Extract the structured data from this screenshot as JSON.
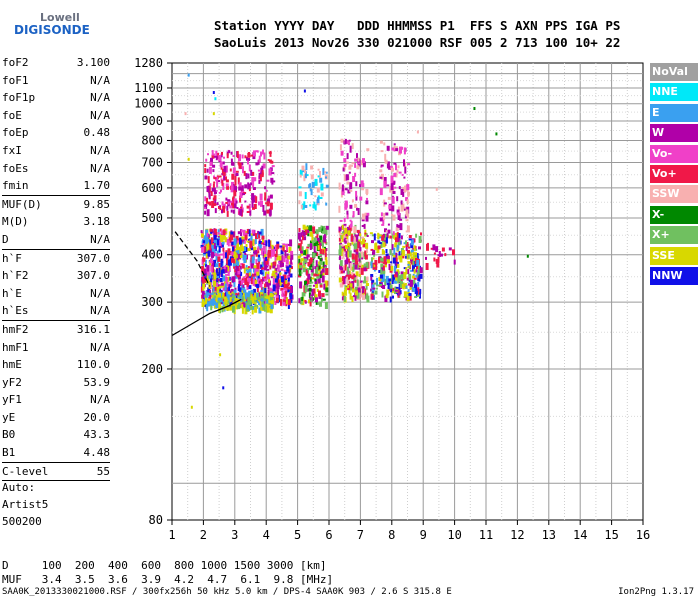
{
  "logo": {
    "line1": "Lowell",
    "line2": "DIGISONDE"
  },
  "header": {
    "row1": "Station YYYY DAY   DDD HHMMSS P1  FFS S AXN PPS IGA PS",
    "row2": "SaoLuis 2013 Nov26 330 021000 RSF 005 2 713 100 10+ 22"
  },
  "params": [
    {
      "label": "foF2",
      "value": "3.100"
    },
    {
      "label": "foF1",
      "value": "N/A"
    },
    {
      "label": "foF1p",
      "value": "N/A"
    },
    {
      "label": "foE",
      "value": "N/A"
    },
    {
      "label": "foEp",
      "value": "0.48"
    },
    {
      "label": "fxI",
      "value": "N/A"
    },
    {
      "label": "foEs",
      "value": "N/A"
    },
    {
      "label": "fmin",
      "value": "1.70"
    },
    {
      "sep": true
    },
    {
      "label": "MUF(D)",
      "value": "9.85"
    },
    {
      "label": "M(D)",
      "value": "3.18"
    },
    {
      "label": "D",
      "value": "N/A"
    },
    {
      "sep": true
    },
    {
      "label": "h`F",
      "value": "307.0"
    },
    {
      "label": "h`F2",
      "value": "307.0"
    },
    {
      "label": "h`E",
      "value": "N/A"
    },
    {
      "label": "h`Es",
      "value": "N/A"
    },
    {
      "sep": true
    },
    {
      "label": "hmF2",
      "value": "316.1"
    },
    {
      "label": "hmF1",
      "value": "N/A"
    },
    {
      "label": "hmE",
      "value": "110.0"
    },
    {
      "label": "yF2",
      "value": "53.9"
    },
    {
      "label": "yF1",
      "value": "N/A"
    },
    {
      "label": "yE",
      "value": "20.0"
    },
    {
      "label": "B0",
      "value": "43.3"
    },
    {
      "label": "B1",
      "value": "4.48"
    },
    {
      "sep": true
    },
    {
      "label": "C-level",
      "value": "55"
    },
    {
      "sep": true
    }
  ],
  "auto": {
    "line1": "Auto:",
    "line2": "Artist5",
    "line3": "500200"
  },
  "dmuf": {
    "d_row": "D     100  200  400  600  800 1000 1500 3000 [km]",
    "muf_row": "MUF   3.4  3.5  3.6  3.9  4.2  4.7  6.1  9.8 [MHz]"
  },
  "footer": {
    "left": "SAA0K_2013330021000.RSF / 300fx256h 50 kHz 5.0 km / DPS-4 SAA0K 903 / 2.6 S 315.8 E",
    "right": "Ion2Png 1.3.17"
  },
  "chart_data": {
    "type": "scatter",
    "x_range": [
      1,
      16
    ],
    "y_range": [
      80,
      1280
    ],
    "x_ticks": [
      "1",
      "2",
      "3",
      "4",
      "5",
      "6",
      "7",
      "8",
      "9",
      "10",
      "11",
      "12",
      "13",
      "14",
      "15",
      "16"
    ],
    "y_ticks": [
      "80",
      "200",
      "300",
      "400",
      "500",
      "600",
      "700",
      "800",
      "900",
      "1000",
      "1100",
      "1280"
    ],
    "y_scale": "log",
    "grid": true,
    "legend": [
      {
        "label": "NoVal",
        "color": "#a0a0a0"
      },
      {
        "label": "NNE",
        "color": "#00e8f8"
      },
      {
        "label": "E",
        "color": "#3aa0f0"
      },
      {
        "label": "W",
        "color": "#b000a8"
      },
      {
        "label": "Vo-",
        "color": "#f040c8"
      },
      {
        "label": "Vo+",
        "color": "#f01848"
      },
      {
        "label": "SSW",
        "color": "#f8b0b0"
      },
      {
        "label": "X-",
        "color": "#008800"
      },
      {
        "label": "X+",
        "color": "#70c060"
      },
      {
        "label": "SSE",
        "color": "#d8d800"
      },
      {
        "label": "NNW",
        "color": "#1010e8"
      }
    ],
    "clusters": [
      {
        "x": [
          1.9,
          3.9
        ],
        "y": [
          300,
          470
        ],
        "density": 720,
        "colors": [
          "#f01848",
          "#b000a8",
          "#f040c8",
          "#1010e8",
          "#3aa0f0",
          "#d8d800"
        ]
      },
      {
        "x": [
          3.9,
          4.8
        ],
        "y": [
          300,
          440
        ],
        "density": 220,
        "colors": [
          "#f01848",
          "#b000a8",
          "#f040c8",
          "#1010e8",
          "#d8d800"
        ]
      },
      {
        "x": [
          2.0,
          4.2
        ],
        "y": [
          290,
          320
        ],
        "density": 200,
        "colors": [
          "#d8d800",
          "#70c060",
          "#3aa0f0"
        ]
      },
      {
        "x": [
          2.0,
          4.2
        ],
        "y": [
          520,
          760
        ],
        "density": 260,
        "colors": [
          "#b000a8",
          "#f040c8",
          "#f01848"
        ]
      },
      {
        "x": [
          5.0,
          5.9
        ],
        "y": [
          300,
          480
        ],
        "density": 260,
        "colors": [
          "#d8d800",
          "#70c060",
          "#008800",
          "#f01848",
          "#b000a8"
        ]
      },
      {
        "x": [
          5.0,
          5.9
        ],
        "y": [
          540,
          700
        ],
        "density": 50,
        "colors": [
          "#00e8f8",
          "#3aa0f0",
          "#f8b0b0"
        ]
      },
      {
        "x": [
          6.3,
          7.2
        ],
        "y": [
          310,
          480
        ],
        "density": 260,
        "colors": [
          "#d8d800",
          "#70c060",
          "#f01848",
          "#f8b0b0",
          "#b000a8"
        ]
      },
      {
        "x": [
          6.3,
          7.2
        ],
        "y": [
          480,
          820
        ],
        "density": 90,
        "colors": [
          "#f8b0b0",
          "#b000a8",
          "#f040c8"
        ]
      },
      {
        "x": [
          7.3,
          8.9
        ],
        "y": [
          310,
          460
        ],
        "density": 320,
        "colors": [
          "#d8d800",
          "#70c060",
          "#1010e8",
          "#3aa0f0",
          "#f01848",
          "#b000a8"
        ]
      },
      {
        "x": [
          7.6,
          8.5
        ],
        "y": [
          460,
          800
        ],
        "density": 110,
        "colors": [
          "#f8b0b0",
          "#b000a8",
          "#f040c8"
        ]
      },
      {
        "x": [
          9.0,
          10.0
        ],
        "y": [
          380,
          430
        ],
        "density": 20,
        "colors": [
          "#b000a8",
          "#f01848"
        ]
      }
    ],
    "trace_lines": [
      {
        "style": "solid",
        "x": [
          1.0,
          1.6,
          2.2,
          2.8,
          3.2
        ],
        "y": [
          245,
          262,
          280,
          293,
          305
        ]
      },
      {
        "style": "dashed",
        "x": [
          1.1,
          1.8,
          2.2
        ],
        "y": [
          460,
          385,
          330
        ]
      }
    ]
  }
}
